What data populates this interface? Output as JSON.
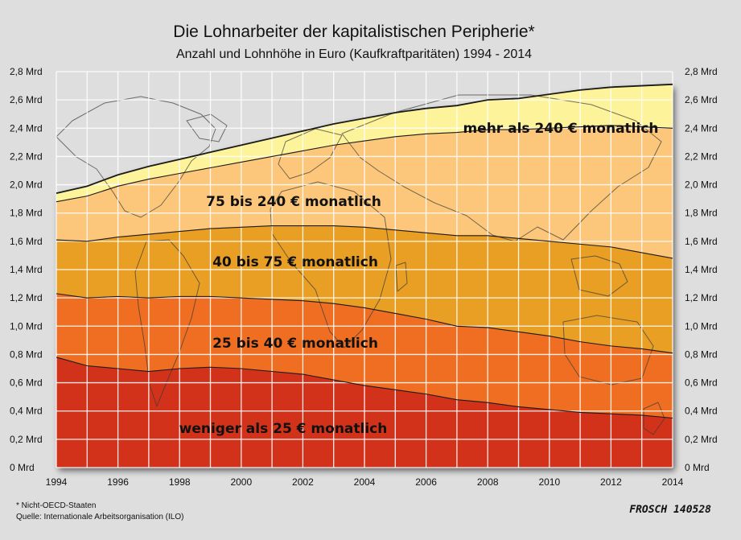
{
  "chart_data": {
    "type": "area",
    "stacked": true,
    "title": "Die Lohnarbeiter der kapitalistischen Peripherie*",
    "subtitle": "Anzahl und Lohnhöhe in Euro (Kaufkraftparitäten) 1994 - 2014",
    "xlabel": "",
    "ylabel": "",
    "unit": "Mrd",
    "x": [
      1994,
      1995,
      1996,
      1997,
      1998,
      1999,
      2000,
      2001,
      2002,
      2003,
      2004,
      2005,
      2006,
      2007,
      2008,
      2009,
      2010,
      2011,
      2012,
      2013,
      2014
    ],
    "x_ticks": [
      "1994",
      "1996",
      "1998",
      "2000",
      "2002",
      "2004",
      "2006",
      "2008",
      "2010",
      "2012",
      "2014"
    ],
    "y_ticks": [
      "0 Mrd",
      "0,2 Mrd",
      "0,4 Mrd",
      "0,6 Mrd",
      "0,8 Mrd",
      "1,0 Mrd",
      "1,2 Mrd",
      "1,4 Mrd",
      "1,6 Mrd",
      "1,8 Mrd",
      "2,0 Mrd",
      "2,2 Mrd",
      "2,4 Mrd",
      "2,6 Mrd",
      "2,8 Mrd"
    ],
    "ylim": [
      0,
      2.8
    ],
    "grid": true,
    "series": [
      {
        "name": "weniger als 25 € monatlich",
        "color": "#d2321a",
        "values": [
          0.78,
          0.72,
          0.7,
          0.68,
          0.7,
          0.71,
          0.7,
          0.68,
          0.66,
          0.62,
          0.58,
          0.55,
          0.52,
          0.48,
          0.46,
          0.43,
          0.41,
          0.39,
          0.38,
          0.37,
          0.35
        ]
      },
      {
        "name": "25 bis  40 € monatlich",
        "color": "#ef6e22",
        "values": [
          0.45,
          0.48,
          0.51,
          0.52,
          0.51,
          0.5,
          0.5,
          0.51,
          0.52,
          0.54,
          0.55,
          0.54,
          0.53,
          0.52,
          0.53,
          0.53,
          0.52,
          0.5,
          0.48,
          0.47,
          0.46
        ]
      },
      {
        "name": "40 bis 75 € monatlich",
        "color": "#e89f24",
        "values": [
          0.38,
          0.4,
          0.42,
          0.45,
          0.46,
          0.48,
          0.5,
          0.52,
          0.53,
          0.55,
          0.57,
          0.59,
          0.61,
          0.64,
          0.65,
          0.66,
          0.67,
          0.69,
          0.7,
          0.68,
          0.67
        ]
      },
      {
        "name": "75 bis 240 € monatlich",
        "color": "#fcc77a",
        "values": [
          0.27,
          0.32,
          0.36,
          0.39,
          0.41,
          0.43,
          0.46,
          0.49,
          0.53,
          0.57,
          0.61,
          0.66,
          0.7,
          0.73,
          0.75,
          0.77,
          0.8,
          0.83,
          0.86,
          0.89,
          0.92
        ]
      },
      {
        "name": "mehr als 240 € monatlich",
        "color": "#fdf39a",
        "values": [
          0.06,
          0.07,
          0.08,
          0.09,
          0.1,
          0.11,
          0.12,
          0.13,
          0.14,
          0.15,
          0.16,
          0.17,
          0.18,
          0.19,
          0.21,
          0.22,
          0.24,
          0.26,
          0.27,
          0.29,
          0.31
        ]
      }
    ]
  },
  "notes": {
    "footnote": "* Nicht-OECD-Staaten",
    "source": "Quelle: Internationale Arbeitsorganisation (ILO)",
    "signature": "FROSCH 140528"
  }
}
